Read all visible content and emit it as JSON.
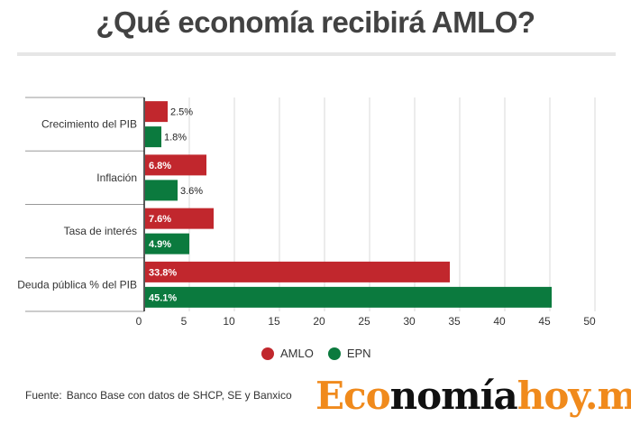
{
  "title": "¿Qué economía recibirá AMLO?",
  "chart_data": {
    "type": "bar",
    "orientation": "horizontal",
    "categories": [
      "Crecimiento del PIB",
      "Inflación",
      "Tasa de interés",
      "Deuda pública % del PIB"
    ],
    "series": [
      {
        "name": "AMLO",
        "color": "#c1272d",
        "values": [
          2.5,
          6.8,
          7.6,
          33.8
        ],
        "labels": [
          "2.5%",
          "6.8%",
          "7.6%",
          "33.8%"
        ]
      },
      {
        "name": "EPN",
        "color": "#0b7a3e",
        "values": [
          1.8,
          3.6,
          4.9,
          45.1
        ],
        "labels": [
          "1.8%",
          "3.6%",
          "4.9%",
          "45.1%"
        ]
      }
    ],
    "xlim": [
      0,
      50
    ],
    "xticks": [
      0,
      5,
      10,
      15,
      20,
      25,
      30,
      35,
      40,
      45,
      50
    ],
    "grid": true,
    "legend_position": "bottom-center"
  },
  "legend": {
    "amlo": "AMLO",
    "epn": "EPN",
    "amlo_color": "#c1272d",
    "epn_color": "#0b7a3e"
  },
  "source": {
    "label": "Fuente:",
    "text": "Banco Base con datos de SHCP, SE y Banxico"
  },
  "logo": {
    "part1": "Eco",
    "part2": "nomía",
    "part3": "hoy.mx"
  }
}
